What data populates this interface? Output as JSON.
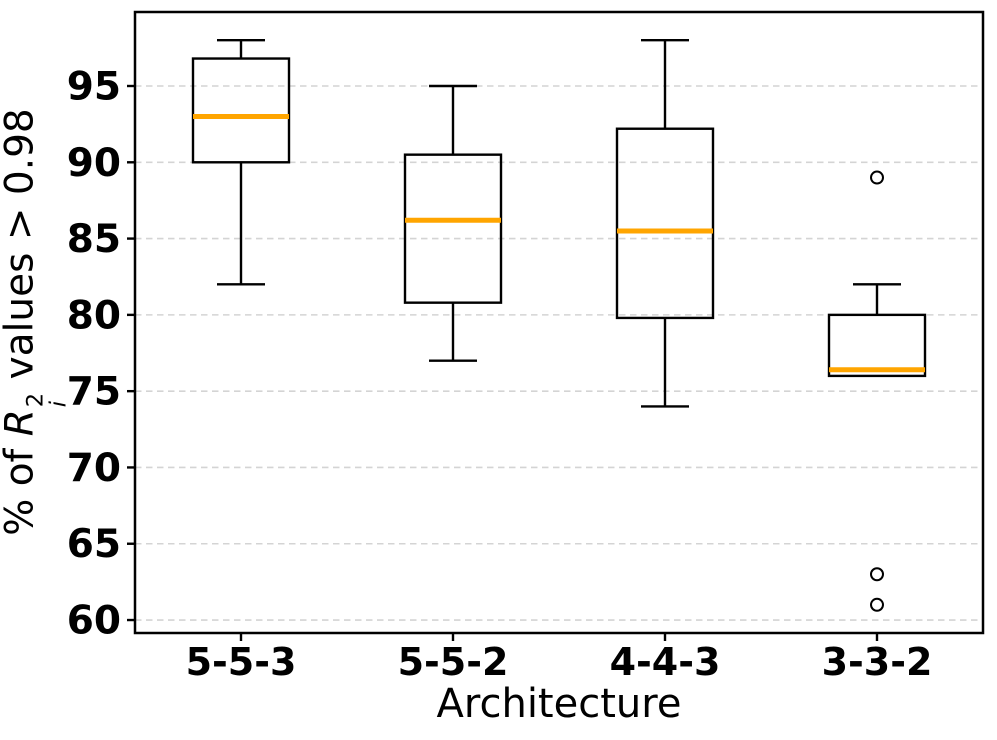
{
  "figure": {
    "background": "#ffffff"
  },
  "chart_data": {
    "type": "box",
    "title": "",
    "xlabel": "Architecture",
    "ylabel": "% of R_i^2 values > 0.98",
    "ylabel_parts": {
      "prefix": "% of ",
      "symbol": "R",
      "superscript": "2",
      "subscript": "i",
      "suffix": " values > 0.98"
    },
    "categories": [
      "5-5-3",
      "5-5-2",
      "4-4-3",
      "3-3-2"
    ],
    "series": [
      {
        "label": "5-5-3",
        "whisker_low": 82,
        "q1": 90,
        "median": 93,
        "q3": 96.8,
        "whisker_high": 98,
        "outliers": []
      },
      {
        "label": "5-5-2",
        "whisker_low": 77,
        "q1": 80.8,
        "median": 86.2,
        "q3": 90.5,
        "whisker_high": 95,
        "outliers": []
      },
      {
        "label": "4-4-3",
        "whisker_low": 74,
        "q1": 79.8,
        "median": 85.5,
        "q3": 92.2,
        "whisker_high": 98,
        "outliers": []
      },
      {
        "label": "3-3-2",
        "whisker_low": 76,
        "q1": 76,
        "median": 76.4,
        "q3": 80,
        "whisker_high": 82,
        "outliers": [
          89,
          63,
          61
        ]
      }
    ],
    "yticks": [
      60,
      65,
      70,
      75,
      80,
      85,
      90,
      95
    ],
    "ylim": [
      59.15,
      99.85
    ],
    "grid": "horizontal-dashed",
    "legend": null,
    "colors": {
      "median": "#FFA500",
      "box_line": "#000000",
      "grid": "#d4d4d4",
      "text": "#000000",
      "background": "#ffffff"
    }
  }
}
